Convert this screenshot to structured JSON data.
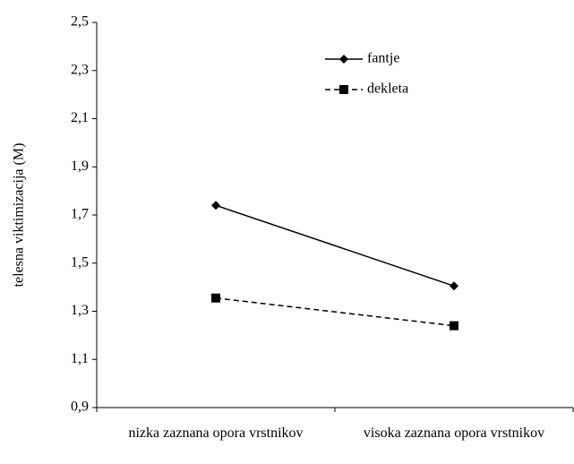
{
  "chart_data": {
    "type": "line",
    "y_label": "telesna viktimizacija (M)",
    "categories": [
      "nizka zaznana opora vrstnikov",
      "visoka zaznana opora vrstnikov"
    ],
    "series": [
      {
        "name": "fantje",
        "color": "#000000",
        "dash": false,
        "marker": "diamond",
        "values": [
          1.74,
          1.405
        ]
      },
      {
        "name": "dekleta",
        "color": "#000000",
        "dash": true,
        "marker": "square",
        "values": [
          1.355,
          1.24
        ]
      }
    ],
    "ylim": [
      0.9,
      2.5
    ],
    "yticks": [
      {
        "value": 0.9,
        "label": "0,9"
      },
      {
        "value": 1.1,
        "label": "1,1"
      },
      {
        "value": 1.3,
        "label": "1,3"
      },
      {
        "value": 1.5,
        "label": "1,5"
      },
      {
        "value": 1.7,
        "label": "1,7"
      },
      {
        "value": 1.9,
        "label": "1,9"
      },
      {
        "value": 2.1,
        "label": "2,1"
      },
      {
        "value": 2.3,
        "label": "2,3"
      },
      {
        "value": 2.5,
        "label": "2,5"
      }
    ],
    "grid": false
  }
}
